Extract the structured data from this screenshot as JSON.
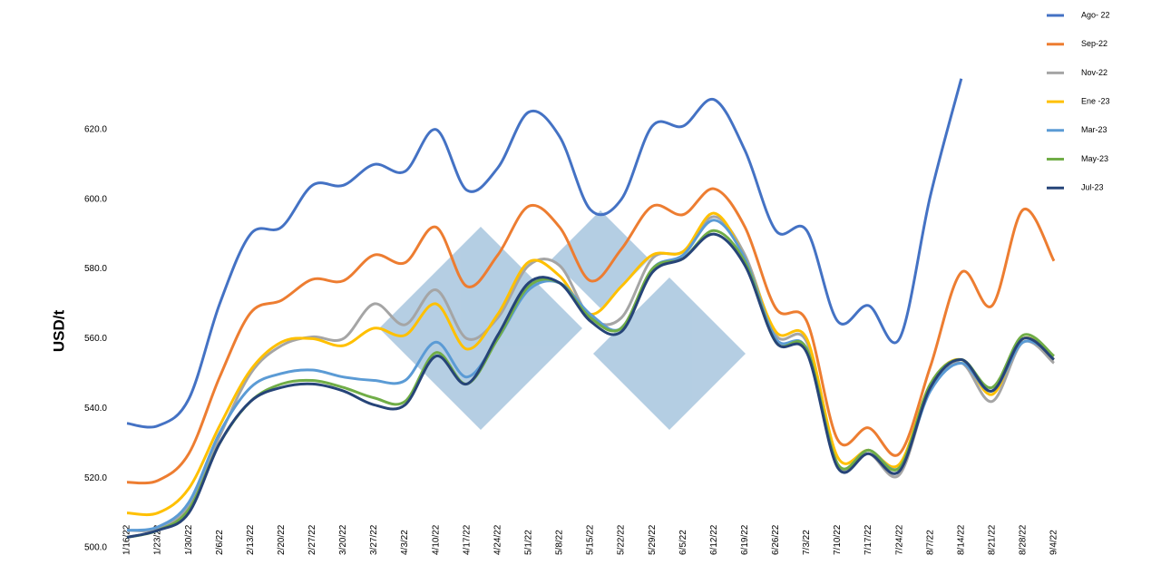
{
  "chart_data": {
    "type": "line",
    "y_label": "USD/t",
    "categories": [
      "1/16/22",
      "1/23/22",
      "1/30/22",
      "2/6/22",
      "2/13/22",
      "2/20/22",
      "2/27/22",
      "3/20/22",
      "3/27/22",
      "4/3/22",
      "4/10/22",
      "4/17/22",
      "4/24/22",
      "5/1/22",
      "5/8/22",
      "5/15/22",
      "5/22/22",
      "5/29/22",
      "6/5/22",
      "6/12/22",
      "6/19/22",
      "6/26/22",
      "7/3/22",
      "7/10/22",
      "7/17/22",
      "7/24/22",
      "8/7/22",
      "8/14/22",
      "8/21/22",
      "8/28/22",
      "9/4/22"
    ],
    "ylim": [
      500,
      640
    ],
    "yticks": [
      {
        "value": 500,
        "label": "500.0"
      },
      {
        "value": 520,
        "label": "520.0"
      },
      {
        "value": 540,
        "label": "540.0"
      },
      {
        "value": 560,
        "label": "560.0"
      },
      {
        "value": 580,
        "label": "580.0"
      },
      {
        "value": 600,
        "label": "600.0"
      },
      {
        "value": 620,
        "label": "620.0"
      }
    ],
    "legend": "top-right",
    "series": [
      {
        "name": "Ago- 22",
        "color": "#4472c4",
        "values": [
          535.7,
          535,
          542.7,
          570,
          590,
          592,
          604,
          604,
          610,
          608,
          620,
          602.6,
          609,
          625,
          618,
          597,
          600,
          621,
          621,
          628.6,
          614,
          591,
          591,
          565,
          569.5,
          560,
          601,
          634.6,
          null,
          null,
          null
        ]
      },
      {
        "name": "Sep-22",
        "color": "#ed7d31",
        "values": [
          518.8,
          519.3,
          527,
          549,
          567.4,
          571,
          577,
          576.6,
          584,
          581.8,
          592,
          575,
          584,
          598,
          592,
          576.6,
          585.7,
          598,
          595.6,
          603,
          592,
          568.7,
          565,
          531,
          534.4,
          527,
          552,
          579,
          569.5,
          597,
          582.3
        ]
      },
      {
        "name": "Nov-22",
        "color": "#a5a5a5",
        "values": [
          505,
          505.5,
          512,
          532,
          550,
          558,
          560.5,
          560,
          570,
          564,
          574,
          560,
          566,
          581,
          581,
          566,
          566,
          583,
          585,
          595,
          584,
          561,
          559,
          524,
          527,
          521,
          546,
          553,
          542,
          559,
          553
        ]
      },
      {
        "name": "Ene -23",
        "color": "#ffc000",
        "values": [
          510,
          510,
          517,
          535,
          551,
          559,
          560,
          558,
          563,
          561,
          570,
          557,
          567,
          582,
          578,
          567,
          575,
          584,
          585,
          596,
          583,
          562,
          560,
          526,
          528,
          524,
          547,
          554,
          544,
          560,
          554
        ]
      },
      {
        "name": "Mar-23",
        "color": "#5b9bd5",
        "values": [
          505,
          506,
          513,
          533,
          546,
          550,
          551,
          549,
          548,
          548,
          559,
          549,
          560,
          574,
          576,
          567,
          563,
          580,
          584,
          594,
          583,
          560,
          557,
          524,
          528,
          523,
          545,
          553,
          545,
          559,
          555
        ]
      },
      {
        "name": "May-23",
        "color": "#70ad47",
        "values": [
          503,
          505,
          511,
          530,
          542,
          547,
          548,
          546,
          543,
          542,
          556,
          547,
          560,
          575,
          576,
          566,
          563,
          580,
          583,
          591,
          582,
          559,
          557,
          524,
          528,
          523,
          547,
          554,
          546,
          561,
          555
        ]
      },
      {
        "name": "Jul-23",
        "color": "#264478",
        "values": [
          503,
          505,
          510,
          530,
          542,
          546,
          547,
          545,
          541,
          541,
          555,
          547,
          561,
          576,
          576,
          565,
          562,
          579,
          583,
          590,
          581,
          559,
          556,
          523,
          527,
          522,
          546,
          554,
          545,
          560,
          554
        ]
      }
    ]
  }
}
